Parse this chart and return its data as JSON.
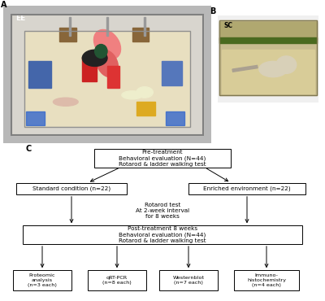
{
  "panel_A_label": "A",
  "panel_B_label": "B",
  "panel_C_label": "C",
  "EE_label": "EE",
  "SC_label": "SC",
  "bg_color": "#ffffff",
  "box_edge_color": "#000000",
  "font_size_box": 5.2,
  "font_size_label": 7,
  "arrow_color": "#000000",
  "cage_bg": "#c8c0a8",
  "cage_floor": "#d8cca8",
  "cage_wall": "#b0b0b0",
  "sc_bg": "#b8a870",
  "sc_floor": "#c8b878"
}
